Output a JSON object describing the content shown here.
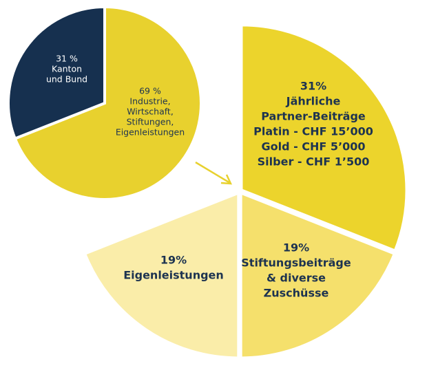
{
  "chart_data": [
    {
      "type": "pie",
      "categories": [
        [
          "Industrie,",
          "Wirtschaft,",
          "Stiftungen,",
          "Eigenleistungen"
        ],
        [
          "Kanton",
          "und Bund"
        ]
      ],
      "values": [
        69,
        31
      ],
      "value_labels": [
        "69 %",
        "31 %"
      ],
      "colors": [
        "#e8d12e",
        "#16304f"
      ]
    },
    {
      "type": "pie",
      "categories": [
        [
          "Jährliche",
          "Partner-Beiträge",
          "Platin - CHF 15’000",
          "Gold - CHF 5’000",
          "Silber - CHF 1’500"
        ],
        [
          "Stiftungsbeiträge",
          "& diverse",
          "Zuschüsse"
        ],
        [
          "Eigenleistungen"
        ]
      ],
      "values": [
        31,
        19,
        19
      ],
      "value_labels": [
        "31%",
        "19%",
        "19%"
      ],
      "colors": [
        "#ecd42c",
        "#f5e06c",
        "#faeda9"
      ]
    }
  ]
}
